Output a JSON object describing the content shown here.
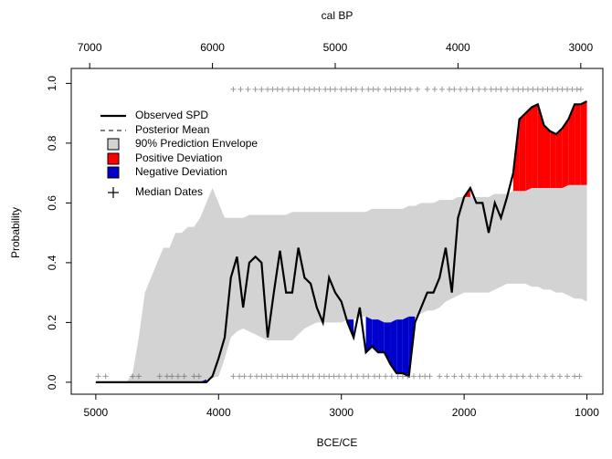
{
  "chart_data": {
    "type": "spd",
    "title": "cal BP",
    "x_label": "BCE/CE",
    "y_label": "Probability",
    "xlim": [
      5200,
      870
    ],
    "xticks": [
      5000,
      4000,
      3000,
      2000,
      1000
    ],
    "x2lim": [
      7150,
      2820
    ],
    "x2ticks": [
      7000,
      6000,
      5000,
      4000,
      3000
    ],
    "ylim": [
      -0.04,
      1.05
    ],
    "yticks": [
      {
        "value": 0,
        "label": "0.0"
      },
      0.2,
      0.4,
      0.6,
      0.8,
      {
        "value": 1,
        "label": "1.0"
      }
    ],
    "x": [
      5000,
      4950,
      4900,
      4850,
      4800,
      4750,
      4700,
      4650,
      4600,
      4550,
      4500,
      4450,
      4400,
      4350,
      4300,
      4250,
      4200,
      4150,
      4100,
      4050,
      4000,
      3950,
      3900,
      3850,
      3800,
      3750,
      3700,
      3650,
      3600,
      3550,
      3500,
      3450,
      3400,
      3350,
      3300,
      3250,
      3200,
      3150,
      3100,
      3050,
      3000,
      2950,
      2900,
      2850,
      2800,
      2750,
      2700,
      2650,
      2600,
      2550,
      2500,
      2450,
      2400,
      2350,
      2300,
      2250,
      2200,
      2150,
      2100,
      2050,
      2000,
      1950,
      1900,
      1850,
      1800,
      1750,
      1700,
      1650,
      1600,
      1550,
      1500,
      1450,
      1400,
      1350,
      1300,
      1250,
      1200,
      1150,
      1100,
      1050,
      1000
    ],
    "series": [
      {
        "name": "Observed SPD",
        "color": "#000000",
        "values": [
          0,
          0,
          0,
          0,
          0,
          0,
          0,
          0,
          0,
          0,
          0,
          0,
          0,
          0,
          0,
          0,
          0,
          0,
          0,
          0.02,
          0.08,
          0.15,
          0.35,
          0.42,
          0.25,
          0.4,
          0.42,
          0.4,
          0.15,
          0.3,
          0.44,
          0.3,
          0.3,
          0.45,
          0.35,
          0.33,
          0.25,
          0.2,
          0.35,
          0.3,
          0.27,
          0.2,
          0.15,
          0.25,
          0.1,
          0.12,
          0.1,
          0.1,
          0.06,
          0.03,
          0.03,
          0.02,
          0.2,
          0.25,
          0.3,
          0.3,
          0.35,
          0.45,
          0.3,
          0.55,
          0.62,
          0.65,
          0.6,
          0.6,
          0.5,
          0.6,
          0.55,
          0.62,
          0.7,
          0.88,
          0.9,
          0.92,
          0.93,
          0.86,
          0.84,
          0.83,
          0.85,
          0.88,
          0.93,
          0.93,
          0.94
        ]
      },
      {
        "name": "90% Prediction Envelope",
        "color": "#d3d3d3",
        "lower": [
          0,
          0,
          0,
          0,
          0,
          0,
          0,
          0,
          0,
          0,
          0,
          0,
          0,
          0,
          0,
          0,
          0,
          0,
          0.01,
          0.015,
          0.02,
          0.08,
          0.15,
          0.17,
          0.18,
          0.17,
          0.16,
          0.15,
          0.14,
          0.14,
          0.14,
          0.14,
          0.14,
          0.16,
          0.18,
          0.19,
          0.2,
          0.2,
          0.2,
          0.2,
          0.2,
          0.21,
          0.21,
          0.22,
          0.22,
          0.21,
          0.21,
          0.2,
          0.2,
          0.21,
          0.21,
          0.22,
          0.22,
          0.23,
          0.24,
          0.24,
          0.25,
          0.27,
          0.28,
          0.29,
          0.3,
          0.3,
          0.3,
          0.3,
          0.3,
          0.31,
          0.32,
          0.33,
          0.33,
          0.33,
          0.33,
          0.32,
          0.32,
          0.31,
          0.31,
          0.3,
          0.3,
          0.29,
          0.28,
          0.28,
          0.27
        ],
        "upper": [
          0,
          0,
          0,
          0,
          0,
          0,
          0.03,
          0.15,
          0.3,
          0.35,
          0.4,
          0.45,
          0.45,
          0.5,
          0.5,
          0.52,
          0.52,
          0.55,
          0.6,
          0.65,
          0.6,
          0.55,
          0.55,
          0.55,
          0.55,
          0.56,
          0.56,
          0.56,
          0.56,
          0.56,
          0.56,
          0.56,
          0.57,
          0.57,
          0.57,
          0.57,
          0.57,
          0.57,
          0.57,
          0.57,
          0.57,
          0.57,
          0.57,
          0.57,
          0.57,
          0.58,
          0.58,
          0.58,
          0.58,
          0.58,
          0.58,
          0.59,
          0.59,
          0.6,
          0.6,
          0.6,
          0.61,
          0.61,
          0.61,
          0.62,
          0.62,
          0.62,
          0.62,
          0.62,
          0.62,
          0.63,
          0.63,
          0.63,
          0.64,
          0.64,
          0.64,
          0.65,
          0.65,
          0.65,
          0.65,
          0.65,
          0.65,
          0.66,
          0.66,
          0.66,
          0.66
        ]
      }
    ],
    "deviation_colors": {
      "positive": "#ff0000",
      "negative": "#0000cc"
    },
    "median_dates": [
      {
        "y": 0.98,
        "x": [
          3880,
          3820,
          3760,
          3700,
          3650,
          3600,
          3560,
          3520,
          3480,
          3430,
          3390,
          3350,
          3300,
          3260,
          3220,
          3180,
          3130,
          3090,
          3050,
          3000,
          2960,
          2920,
          2880,
          2830,
          2780,
          2740,
          2700,
          2640,
          2600,
          2560,
          2520,
          2480,
          2440,
          2380,
          2300,
          2240,
          2180,
          2120,
          2080,
          2030,
          1980,
          1930,
          1880,
          1830,
          1780,
          1740,
          1700,
          1650,
          1600,
          1560,
          1520,
          1480,
          1440,
          1400,
          1360,
          1320,
          1280,
          1240,
          1200,
          1160,
          1120,
          1080,
          1050
        ]
      },
      {
        "y": 0.02,
        "x": [
          4980,
          4920,
          4700,
          4650,
          4480,
          4420,
          4380,
          4330,
          4280,
          4200,
          4160,
          3880,
          3830,
          3790,
          3740,
          3690,
          3650,
          3610,
          3570,
          3520,
          3480,
          3440,
          3400,
          3360,
          3310,
          3270,
          3230,
          3180,
          3140,
          3100,
          3060,
          3020,
          2970,
          2920,
          2870,
          2820,
          2780,
          2730,
          2690,
          2640,
          2590,
          2540,
          2500,
          2460,
          2410,
          2360,
          2320,
          2280,
          2200,
          2140,
          2080,
          2020,
          1960,
          1900,
          1840,
          1790,
          1730,
          1680,
          1620,
          1570,
          1520,
          1460,
          1400,
          1340,
          1280,
          1220,
          1160,
          1100,
          1060
        ]
      }
    ],
    "legend": [
      {
        "label": "Observed SPD",
        "style": "line",
        "color": "#000000"
      },
      {
        "label": "Posterior Mean",
        "style": "dashed",
        "color": "#000000"
      },
      {
        "label": "90% Prediction Envelope",
        "style": "box",
        "color": "#d3d3d3"
      },
      {
        "label": "Positive Deviation",
        "style": "box",
        "color": "#ff0000"
      },
      {
        "label": "Negative Deviation",
        "style": "box",
        "color": "#0000cc"
      },
      {
        "label": "Median Dates",
        "style": "cross",
        "color": "#000000"
      }
    ]
  }
}
